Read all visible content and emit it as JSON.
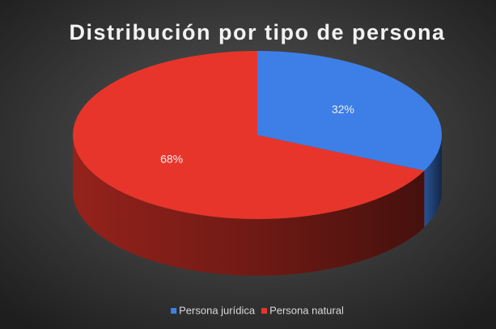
{
  "chart_data": {
    "type": "pie",
    "title": "Distribución por tipo de persona",
    "categories": [
      "Persona jurídica",
      "Persona natural"
    ],
    "values": [
      32,
      68
    ],
    "value_labels": [
      "32%",
      "68%"
    ],
    "colors": [
      "#3d7fe6",
      "#e8352b"
    ],
    "legend": "bottom"
  }
}
